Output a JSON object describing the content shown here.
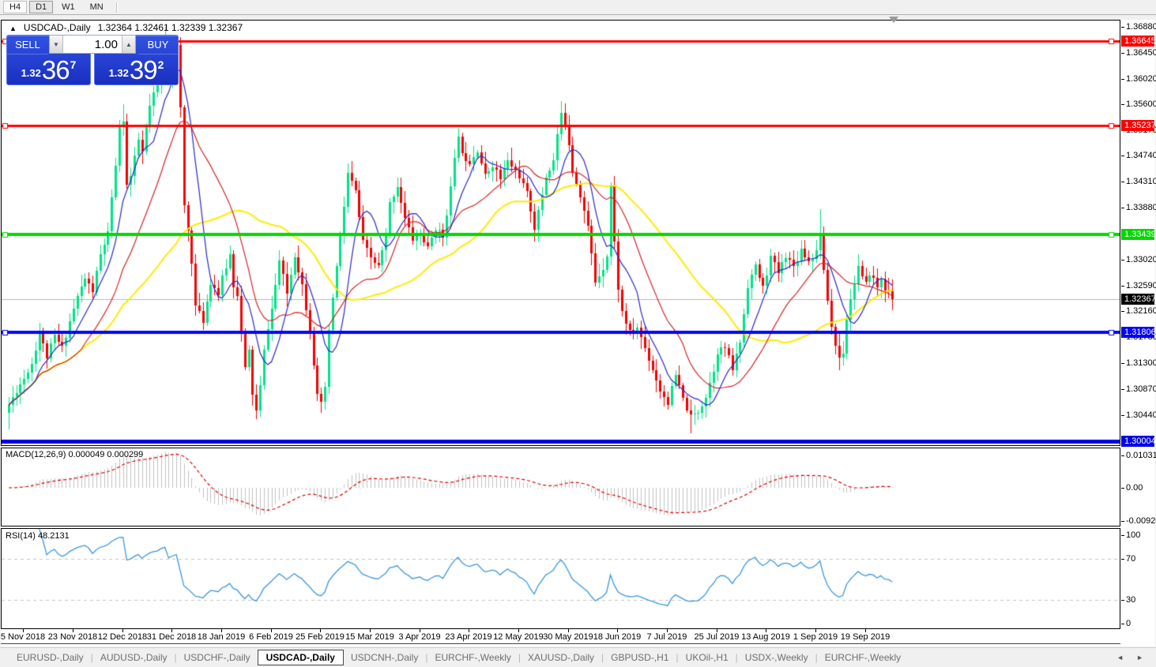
{
  "toolbar": {
    "timeframes": [
      {
        "label": "H4",
        "state": "boxed"
      },
      {
        "label": "D1",
        "state": "active"
      },
      {
        "label": "W1",
        "state": "flat"
      },
      {
        "label": "MN",
        "state": "flat"
      }
    ]
  },
  "chart_header": {
    "collapse_icon": "▲",
    "symbol_label": "USDCAD-,Daily",
    "ohlc_text": "1.32364 1.32461 1.32339 1.32367"
  },
  "trade_panel": {
    "sell_label": "SELL",
    "buy_label": "BUY",
    "volume": "1.00",
    "sell_price": {
      "prefix": "1.32",
      "big": "36",
      "sup": "7"
    },
    "buy_price": {
      "prefix": "1.32",
      "big": "39",
      "sup": "2"
    }
  },
  "indicators": {
    "macd": {
      "label": "MACD(12,26,9) 0.000049 0.000299",
      "axis": [
        {
          "v": 0.010311,
          "text": "0.010311"
        },
        {
          "v": 0,
          "text": "0.00"
        },
        {
          "v": -0.009203,
          "text": "-0.009203"
        }
      ]
    },
    "rsi": {
      "label": "RSI(14) 48.2131",
      "axis": [
        {
          "v": 100,
          "text": "100"
        },
        {
          "v": 70,
          "text": "70"
        },
        {
          "v": 30,
          "text": "30"
        },
        {
          "v": 0,
          "text": "0"
        }
      ]
    }
  },
  "tabs": {
    "items": [
      {
        "label": "EURUSD-,Daily",
        "active": false
      },
      {
        "label": "AUDUSD-,Daily",
        "active": false
      },
      {
        "label": "USDCHF-,Daily",
        "active": false
      },
      {
        "label": "USDCAD-,Daily",
        "active": true
      },
      {
        "label": "USDCNH-,Daily",
        "active": false
      },
      {
        "label": "EURCHF-,Weekly",
        "active": false
      },
      {
        "label": "XAUUSD-,Daily",
        "active": false
      },
      {
        "label": "GBPUSD-,H1",
        "active": false
      },
      {
        "label": "UKOil-,H1",
        "active": false
      },
      {
        "label": "USDX-,Weekly",
        "active": false
      },
      {
        "label": "EURCHF-,Weekly",
        "active": false
      }
    ],
    "left_arrow": "◄",
    "right_arrow": "►"
  },
  "chart_data": {
    "type": "candlestick",
    "symbol": "USDCAD-",
    "timeframe": "Daily",
    "ohlc": {
      "open": 1.32364,
      "high": 1.32461,
      "low": 1.32339,
      "close": 1.32367
    },
    "bid": 1.32367,
    "ask": 1.32392,
    "price_axis_top": 1.3688,
    "price_axis_bottom": 1.30004,
    "axis_ticks": [
      "1.36880",
      "1.36450",
      "1.36020",
      "1.35600",
      "1.35170",
      "1.34740",
      "1.34310",
      "1.33880",
      "1.33020",
      "1.32590",
      "1.32160",
      "1.31730",
      "1.31300",
      "1.30870",
      "1.30440"
    ],
    "levels": [
      {
        "price": 1.36645,
        "label": "1.36645",
        "color": "#ff0000",
        "thickness": 3,
        "handles": true
      },
      {
        "price": 1.35237,
        "label": "1.35237",
        "color": "#ff0000",
        "thickness": 3,
        "handles": true
      },
      {
        "price": 1.33439,
        "label": "1.33439",
        "color": "#00d800",
        "thickness": 4,
        "handles": true
      },
      {
        "price": 1.31806,
        "label": "1.31806",
        "color": "#0000ff",
        "thickness": 4,
        "handles": true
      },
      {
        "price": 1.30004,
        "label": "1.30004",
        "color": "#0000e6",
        "thickness": 5,
        "handles": false
      }
    ],
    "current_price": {
      "value": 1.32367,
      "label": "1.32367",
      "line_color": "#b9b9b9",
      "badge_bg": "#000000"
    },
    "n_candles": 233,
    "last_close": 1.32367,
    "up_color": "#00e287",
    "down_color": "#f20000",
    "close_keypoints": [
      [
        0,
        1.306
      ],
      [
        2,
        1.3085
      ],
      [
        4,
        1.3105
      ],
      [
        6,
        1.313
      ],
      [
        8,
        1.318
      ],
      [
        10,
        1.314
      ],
      [
        12,
        1.3175
      ],
      [
        14,
        1.3155
      ],
      [
        16,
        1.32
      ],
      [
        18,
        1.324
      ],
      [
        20,
        1.327
      ],
      [
        22,
        1.325
      ],
      [
        24,
        1.331
      ],
      [
        26,
        1.3345
      ],
      [
        27,
        1.34
      ],
      [
        28,
        1.346
      ],
      [
        29,
        1.352
      ],
      [
        30,
        1.3535
      ],
      [
        31,
        1.3425
      ],
      [
        32,
        1.344
      ],
      [
        33,
        1.347
      ],
      [
        34,
        1.35
      ],
      [
        35,
        1.348
      ],
      [
        36,
        1.352
      ],
      [
        37,
        1.3555
      ],
      [
        38,
        1.3575
      ],
      [
        39,
        1.359
      ],
      [
        40,
        1.3635
      ],
      [
        41,
        1.3665
      ],
      [
        42,
        1.361
      ],
      [
        43,
        1.364
      ],
      [
        44,
        1.3655
      ],
      [
        45,
        1.355
      ],
      [
        46,
        1.339
      ],
      [
        47,
        1.335
      ],
      [
        48,
        1.33
      ],
      [
        49,
        1.3225
      ],
      [
        51,
        1.32
      ],
      [
        53,
        1.3265
      ],
      [
        55,
        1.3245
      ],
      [
        56,
        1.327
      ],
      [
        58,
        1.331
      ],
      [
        59,
        1.326
      ],
      [
        60,
        1.3245
      ],
      [
        61,
        1.318
      ],
      [
        62,
        1.312
      ],
      [
        63,
        1.315
      ],
      [
        64,
        1.308
      ],
      [
        65,
        1.305
      ],
      [
        66,
        1.309
      ],
      [
        67,
        1.315
      ],
      [
        68,
        1.319
      ],
      [
        69,
        1.322
      ],
      [
        71,
        1.33
      ],
      [
        73,
        1.3245
      ],
      [
        75,
        1.331
      ],
      [
        77,
        1.326
      ],
      [
        79,
        1.3185
      ],
      [
        80,
        1.313
      ],
      [
        81,
        1.3075
      ],
      [
        82,
        1.306
      ],
      [
        83,
        1.309
      ],
      [
        84,
        1.318
      ],
      [
        85,
        1.324
      ],
      [
        86,
        1.329
      ],
      [
        87,
        1.334
      ],
      [
        88,
        1.339
      ],
      [
        89,
        1.3445
      ],
      [
        91,
        1.3415
      ],
      [
        93,
        1.333
      ],
      [
        95,
        1.3305
      ],
      [
        97,
        1.329
      ],
      [
        99,
        1.334
      ],
      [
        100,
        1.3395
      ],
      [
        102,
        1.3425
      ],
      [
        104,
        1.337
      ],
      [
        106,
        1.3335
      ],
      [
        108,
        1.3345
      ],
      [
        110,
        1.332
      ],
      [
        112,
        1.3355
      ],
      [
        114,
        1.334
      ],
      [
        116,
        1.342
      ],
      [
        118,
        1.351
      ],
      [
        119,
        1.3475
      ],
      [
        121,
        1.3465
      ],
      [
        123,
        1.3485
      ],
      [
        125,
        1.344
      ],
      [
        127,
        1.346
      ],
      [
        129,
        1.3435
      ],
      [
        131,
        1.3465
      ],
      [
        133,
        1.345
      ],
      [
        134,
        1.344
      ],
      [
        136,
        1.341
      ],
      [
        137,
        1.3385
      ],
      [
        138,
        1.3355
      ],
      [
        139,
        1.338
      ],
      [
        141,
        1.344
      ],
      [
        143,
        1.3465
      ],
      [
        144,
        1.351
      ],
      [
        145,
        1.354
      ],
      [
        146,
        1.353
      ],
      [
        147,
        1.3495
      ],
      [
        148,
        1.345
      ],
      [
        150,
        1.341
      ],
      [
        152,
        1.3355
      ],
      [
        154,
        1.3265
      ],
      [
        156,
        1.329
      ],
      [
        157,
        1.331
      ],
      [
        158,
        1.3425
      ],
      [
        159,
        1.333
      ],
      [
        160,
        1.3255
      ],
      [
        161,
        1.3215
      ],
      [
        163,
        1.318
      ],
      [
        165,
        1.319
      ],
      [
        167,
        1.3155
      ],
      [
        169,
        1.312
      ],
      [
        171,
        1.3085
      ],
      [
        173,
        1.3065
      ],
      [
        175,
        1.311
      ],
      [
        177,
        1.307
      ],
      [
        179,
        1.304
      ],
      [
        181,
        1.305
      ],
      [
        183,
        1.3075
      ],
      [
        185,
        1.312
      ],
      [
        186,
        1.315
      ],
      [
        188,
        1.3155
      ],
      [
        190,
        1.312
      ],
      [
        192,
        1.3165
      ],
      [
        194,
        1.326
      ],
      [
        196,
        1.329
      ],
      [
        198,
        1.3255
      ],
      [
        200,
        1.3305
      ],
      [
        202,
        1.328
      ],
      [
        204,
        1.331
      ],
      [
        206,
        1.329
      ],
      [
        208,
        1.332
      ],
      [
        210,
        1.33
      ],
      [
        212,
        1.3315
      ],
      [
        213,
        1.3345
      ],
      [
        214,
        1.328
      ],
      [
        215,
        1.3235
      ],
      [
        216,
        1.319
      ],
      [
        217,
        1.316
      ],
      [
        218,
        1.314
      ],
      [
        219,
        1.315
      ],
      [
        220,
        1.3205
      ],
      [
        221,
        1.3235
      ],
      [
        222,
        1.3265
      ],
      [
        223,
        1.329
      ],
      [
        224,
        1.327
      ],
      [
        225,
        1.326
      ],
      [
        226,
        1.328
      ],
      [
        227,
        1.327
      ],
      [
        228,
        1.3255
      ],
      [
        229,
        1.327
      ],
      [
        230,
        1.3255
      ],
      [
        231,
        1.3245
      ],
      [
        232,
        1.32367
      ]
    ],
    "wick_overrides": [
      {
        "i": 41,
        "high": 1.3688
      },
      {
        "i": 44,
        "high": 1.3665
      },
      {
        "i": 30,
        "high": 1.356
      },
      {
        "i": 118,
        "high": 1.3521
      },
      {
        "i": 145,
        "high": 1.3565
      },
      {
        "i": 213,
        "high": 1.3385
      },
      {
        "i": 65,
        "low": 1.3042
      },
      {
        "i": 82,
        "low": 1.3048
      },
      {
        "i": 179,
        "low": 1.3014
      },
      {
        "i": 218,
        "low": 1.3118
      },
      {
        "i": 0,
        "low": 1.302
      }
    ],
    "moving_averages": [
      {
        "period": 45,
        "color": "#ffea00",
        "width": 2
      },
      {
        "period": 20,
        "color": "#d42424",
        "width": 1.2
      },
      {
        "period": 8,
        "color": "#2828c8",
        "width": 1.2
      }
    ],
    "macd": {
      "fast": 12,
      "slow": 26,
      "signal": 9,
      "ymax": 0.010311,
      "ymin": -0.009203,
      "hist_color": "#c0c0c0",
      "signal_color": "#e00000"
    },
    "rsi": {
      "period": 14,
      "color": "#3a96dc",
      "levels": [
        70,
        30
      ],
      "level_color": "#c4c4c4",
      "last_value": 48.2131
    },
    "x_ticks": [
      {
        "i": 4,
        "label": "5 Nov 2018"
      },
      {
        "i": 17,
        "label": "23 Nov 2018"
      },
      {
        "i": 30,
        "label": "12 Dec 2018"
      },
      {
        "i": 43,
        "label": "31 Dec 2018"
      },
      {
        "i": 56,
        "label": "18 Jan 2019"
      },
      {
        "i": 69,
        "label": "6 Feb 2019"
      },
      {
        "i": 82,
        "label": "25 Feb 2019"
      },
      {
        "i": 95,
        "label": "15 Mar 2019"
      },
      {
        "i": 108,
        "label": "3 Apr 2019"
      },
      {
        "i": 121,
        "label": "23 Apr 2019"
      },
      {
        "i": 134,
        "label": "12 May 2019"
      },
      {
        "i": 147,
        "label": "30 May 2019"
      },
      {
        "i": 160,
        "label": "18 Jun 2019"
      },
      {
        "i": 173,
        "label": "7 Jul 2019"
      },
      {
        "i": 186,
        "label": "25 Jul 2019"
      },
      {
        "i": 199,
        "label": "13 Aug 2019"
      },
      {
        "i": 212,
        "label": "1 Sep 2019"
      },
      {
        "i": 225,
        "label": "19 Sep 2019"
      }
    ]
  }
}
